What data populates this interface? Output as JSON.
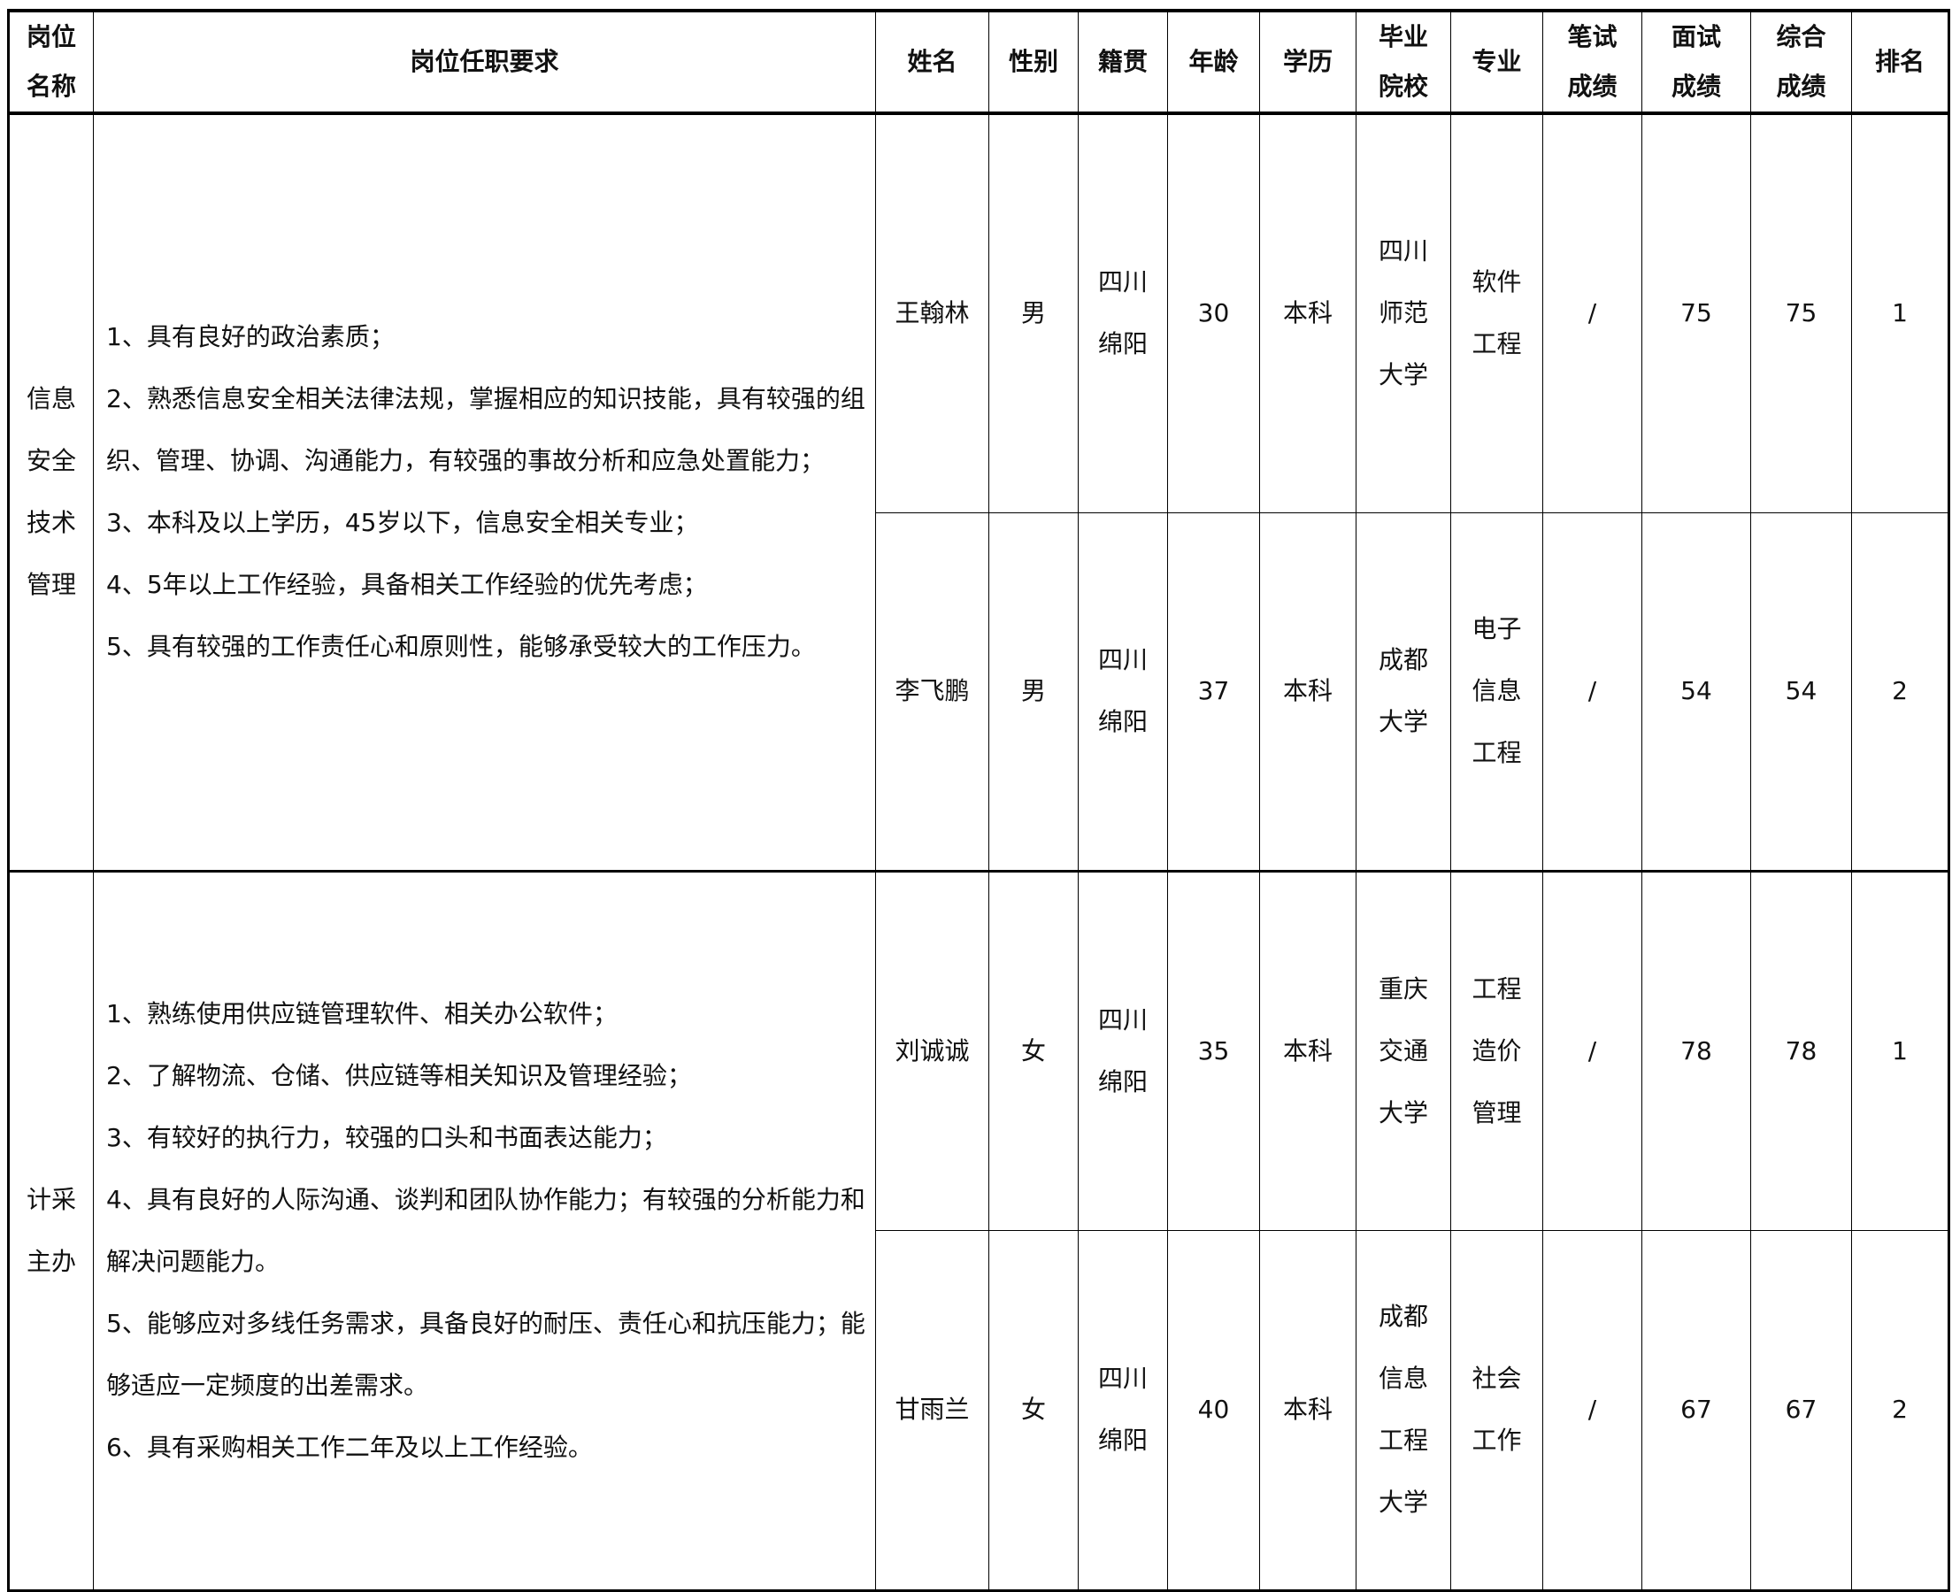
{
  "headers": [
    "岗位\n名称",
    "岗位任职要求",
    "姓名",
    "性别",
    "籍贯",
    "年龄",
    "学历",
    "毕业\n院校",
    "专业",
    "笔试\n成绩",
    "面试\n成绩",
    "综合\n成绩",
    "排名"
  ],
  "groups": [
    {
      "position": "信息\n安全\n技术\n管理",
      "requirements": [
        "1、具有良好的政治素质；",
        "2、熟悉信息安全相关法律法规，掌握相应的知识技能，具有较强的组织、管理、协调、沟通能力，有较强的事故分析和应急处置能力；",
        "3、本科及以上学历，45岁以下，信息安全相关专业；",
        "4、5年以上工作经验，具备相关工作经验的优先考虑；",
        "5、具有较强的工作责任心和原则性，能够承受较大的工作压力。"
      ],
      "candidates": [
        {
          "name": "王翰林",
          "gender": "男",
          "origin": "四川\n绵阳",
          "age": "30",
          "education": "本科",
          "school": "四川\n师范\n大学",
          "major": "软件\n工程",
          "written": "/",
          "interview": "75",
          "total": "75",
          "rank": "1"
        },
        {
          "name": "李飞鹏",
          "gender": "男",
          "origin": "四川\n绵阳",
          "age": "37",
          "education": "本科",
          "school": "成都\n大学",
          "major": "电子\n信息\n工程",
          "written": "/",
          "interview": "54",
          "total": "54",
          "rank": "2"
        }
      ]
    },
    {
      "position": "计采\n主办",
      "requirements": [
        "1、熟练使用供应链管理软件、相关办公软件；",
        "2、了解物流、仓储、供应链等相关知识及管理经验；",
        "3、有较好的执行力，较强的口头和书面表达能力；",
        "4、具有良好的人际沟通、谈判和团队协作能力；有较强的分析能力和解决问题能力。",
        "5、能够应对多线任务需求，具备良好的耐压、责任心和抗压能力；能够适应一定频度的出差需求。",
        "6、具有采购相关工作二年及以上工作经验。"
      ],
      "candidates": [
        {
          "name": "刘诚诚",
          "gender": "女",
          "origin": "四川\n绵阳",
          "age": "35",
          "education": "本科",
          "school": "重庆\n交通\n大学",
          "major": "工程\n造价\n管理",
          "written": "/",
          "interview": "78",
          "total": "78",
          "rank": "1"
        },
        {
          "name": "甘雨兰",
          "gender": "女",
          "origin": "四川\n绵阳",
          "age": "40",
          "education": "本科",
          "school": "成都\n信息\n工程\n大学",
          "major": "社会\n工作",
          "written": "/",
          "interview": "67",
          "total": "67",
          "rank": "2"
        }
      ]
    }
  ]
}
